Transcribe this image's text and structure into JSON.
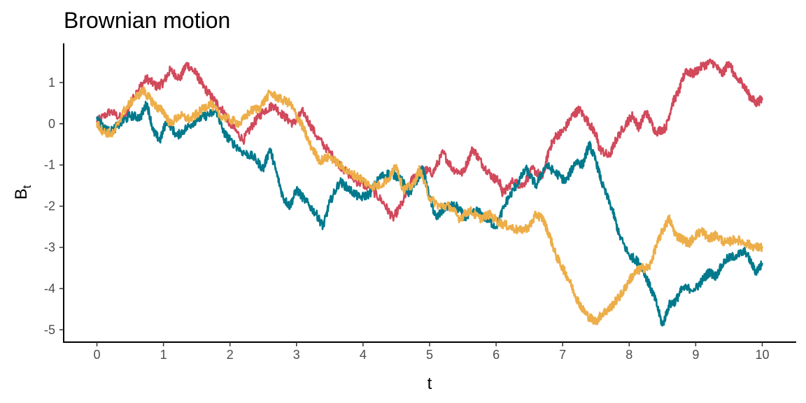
{
  "chart_data": {
    "type": "line",
    "title": "Brownian motion",
    "xlabel": "t",
    "ylabel": {
      "main": "B",
      "subscript": "t"
    },
    "xlim": [
      -0.5,
      10.5
    ],
    "ylim": [
      -5.3,
      1.95
    ],
    "x_ticks": [
      0,
      1,
      2,
      3,
      4,
      5,
      6,
      7,
      8,
      9,
      10
    ],
    "y_ticks": [
      -5,
      -4,
      -3,
      -2,
      -1,
      0,
      1
    ],
    "x_tick_labels": [
      "0",
      "1",
      "2",
      "3",
      "4",
      "5",
      "6",
      "7",
      "8",
      "9",
      "10"
    ],
    "y_tick_labels": [
      "-5",
      "-4",
      "-3",
      "-2",
      "-1",
      "0",
      "1"
    ],
    "grid": false,
    "legend": "none",
    "series": [
      {
        "color": "#d1495b",
        "points": [
          [
            0,
            0.05
          ],
          [
            0.2,
            0.3
          ],
          [
            0.4,
            0.1
          ],
          [
            0.6,
            0.8
          ],
          [
            0.75,
            1.1
          ],
          [
            0.9,
            0.9
          ],
          [
            1.0,
            1.0
          ],
          [
            1.1,
            1.3
          ],
          [
            1.25,
            1.1
          ],
          [
            1.35,
            1.45
          ],
          [
            1.5,
            1.2
          ],
          [
            1.6,
            0.9
          ],
          [
            1.75,
            0.6
          ],
          [
            1.9,
            0.3
          ],
          [
            2.0,
            0.0
          ],
          [
            2.2,
            -0.4
          ],
          [
            2.35,
            0.0
          ],
          [
            2.5,
            0.3
          ],
          [
            2.65,
            0.45
          ],
          [
            2.8,
            0.2
          ],
          [
            2.95,
            0.0
          ],
          [
            3.1,
            0.3
          ],
          [
            3.3,
            -0.3
          ],
          [
            3.5,
            -0.7
          ],
          [
            3.7,
            -1.1
          ],
          [
            3.9,
            -1.4
          ],
          [
            4.1,
            -1.55
          ],
          [
            4.3,
            -1.9
          ],
          [
            4.45,
            -2.3
          ],
          [
            4.6,
            -1.9
          ],
          [
            4.75,
            -1.3
          ],
          [
            4.9,
            -1.1
          ],
          [
            5.05,
            -1.2
          ],
          [
            5.2,
            -0.7
          ],
          [
            5.35,
            -1.1
          ],
          [
            5.5,
            -1.2
          ],
          [
            5.65,
            -0.6
          ],
          [
            5.8,
            -1.0
          ],
          [
            5.95,
            -1.3
          ],
          [
            6.05,
            -1.4
          ],
          [
            6.1,
            -1.7
          ],
          [
            6.25,
            -1.4
          ],
          [
            6.4,
            -1.5
          ],
          [
            6.55,
            -1.1
          ],
          [
            6.7,
            -1.3
          ],
          [
            6.8,
            -0.6
          ],
          [
            6.9,
            -0.3
          ],
          [
            7.0,
            -0.2
          ],
          [
            7.15,
            0.2
          ],
          [
            7.25,
            0.35
          ],
          [
            7.4,
            0.0
          ],
          [
            7.5,
            -0.25
          ],
          [
            7.55,
            -0.6
          ],
          [
            7.7,
            -0.8
          ],
          [
            7.8,
            -0.4
          ],
          [
            7.95,
            0.0
          ],
          [
            8.05,
            0.2
          ],
          [
            8.15,
            -0.1
          ],
          [
            8.25,
            0.3
          ],
          [
            8.4,
            -0.2
          ],
          [
            8.55,
            -0.1
          ],
          [
            8.65,
            0.5
          ],
          [
            8.75,
            0.8
          ],
          [
            8.85,
            1.3
          ],
          [
            8.95,
            1.2
          ],
          [
            9.1,
            1.4
          ],
          [
            9.25,
            1.5
          ],
          [
            9.4,
            1.2
          ],
          [
            9.5,
            1.5
          ],
          [
            9.6,
            1.1
          ],
          [
            9.7,
            1.0
          ],
          [
            9.8,
            0.7
          ],
          [
            9.9,
            0.5
          ],
          [
            10.0,
            0.6
          ]
        ]
      },
      {
        "color": "#00798c",
        "points": [
          [
            0,
            0.15
          ],
          [
            0.1,
            -0.1
          ],
          [
            0.2,
            -0.2
          ],
          [
            0.35,
            0.0
          ],
          [
            0.5,
            0.2
          ],
          [
            0.65,
            0.15
          ],
          [
            0.75,
            0.5
          ],
          [
            0.85,
            -0.2
          ],
          [
            0.95,
            -0.4
          ],
          [
            1.05,
            0.1
          ],
          [
            1.2,
            -0.3
          ],
          [
            1.35,
            -0.1
          ],
          [
            1.5,
            0.1
          ],
          [
            1.65,
            0.2
          ],
          [
            1.8,
            0.3
          ],
          [
            1.9,
            -0.2
          ],
          [
            2.0,
            -0.4
          ],
          [
            2.2,
            -0.7
          ],
          [
            2.35,
            -0.8
          ],
          [
            2.5,
            -1.1
          ],
          [
            2.6,
            -0.6
          ],
          [
            2.7,
            -1.2
          ],
          [
            2.8,
            -1.8
          ],
          [
            2.9,
            -2.0
          ],
          [
            3.0,
            -1.6
          ],
          [
            3.15,
            -1.9
          ],
          [
            3.3,
            -2.2
          ],
          [
            3.4,
            -2.5
          ],
          [
            3.5,
            -1.9
          ],
          [
            3.65,
            -1.4
          ],
          [
            3.8,
            -1.6
          ],
          [
            3.95,
            -1.8
          ],
          [
            4.1,
            -1.7
          ],
          [
            4.25,
            -1.3
          ],
          [
            4.4,
            -1.2
          ],
          [
            4.55,
            -1.3
          ],
          [
            4.7,
            -1.7
          ],
          [
            4.8,
            -1.4
          ],
          [
            4.9,
            -1.1
          ],
          [
            5.0,
            -1.8
          ],
          [
            5.1,
            -2.3
          ],
          [
            5.25,
            -2.0
          ],
          [
            5.4,
            -2.0
          ],
          [
            5.55,
            -2.3
          ],
          [
            5.7,
            -2.1
          ],
          [
            5.85,
            -2.3
          ],
          [
            6.0,
            -2.5
          ],
          [
            6.15,
            -1.9
          ],
          [
            6.3,
            -1.5
          ],
          [
            6.45,
            -1.1
          ],
          [
            6.6,
            -1.5
          ],
          [
            6.75,
            -1.0
          ],
          [
            6.9,
            -1.2
          ],
          [
            7.05,
            -1.4
          ],
          [
            7.2,
            -0.9
          ],
          [
            7.3,
            -1.0
          ],
          [
            7.4,
            -0.5
          ],
          [
            7.5,
            -0.9
          ],
          [
            7.6,
            -1.5
          ],
          [
            7.75,
            -2.1
          ],
          [
            7.85,
            -2.7
          ],
          [
            8.0,
            -3.2
          ],
          [
            8.1,
            -3.3
          ],
          [
            8.2,
            -3.5
          ],
          [
            8.3,
            -3.9
          ],
          [
            8.4,
            -4.3
          ],
          [
            8.5,
            -4.9
          ],
          [
            8.6,
            -4.4
          ],
          [
            8.7,
            -4.3
          ],
          [
            8.8,
            -4.0
          ],
          [
            9.0,
            -4.0
          ],
          [
            9.1,
            -3.8
          ],
          [
            9.2,
            -3.6
          ],
          [
            9.3,
            -3.7
          ],
          [
            9.45,
            -3.3
          ],
          [
            9.6,
            -3.2
          ],
          [
            9.75,
            -3.1
          ],
          [
            9.9,
            -3.6
          ],
          [
            10.0,
            -3.4
          ]
        ]
      },
      {
        "color": "#edae49",
        "points": [
          [
            0,
            0.0
          ],
          [
            0.1,
            -0.2
          ],
          [
            0.25,
            -0.25
          ],
          [
            0.4,
            0.3
          ],
          [
            0.55,
            0.6
          ],
          [
            0.7,
            0.8
          ],
          [
            0.8,
            0.6
          ],
          [
            0.9,
            0.4
          ],
          [
            1.0,
            0.3
          ],
          [
            1.1,
            0.0
          ],
          [
            1.25,
            0.2
          ],
          [
            1.4,
            0.1
          ],
          [
            1.55,
            0.3
          ],
          [
            1.7,
            0.5
          ],
          [
            1.85,
            0.2
          ],
          [
            2.0,
            0.1
          ],
          [
            2.15,
            0.0
          ],
          [
            2.3,
            0.3
          ],
          [
            2.45,
            0.4
          ],
          [
            2.6,
            0.75
          ],
          [
            2.75,
            0.6
          ],
          [
            2.9,
            0.5
          ],
          [
            3.0,
            0.2
          ],
          [
            3.1,
            -0.1
          ],
          [
            3.2,
            -0.5
          ],
          [
            3.35,
            -0.9
          ],
          [
            3.5,
            -0.8
          ],
          [
            3.65,
            -1.0
          ],
          [
            3.8,
            -1.2
          ],
          [
            3.95,
            -1.3
          ],
          [
            4.1,
            -1.5
          ],
          [
            4.25,
            -1.5
          ],
          [
            4.4,
            -1.3
          ],
          [
            4.5,
            -1.0
          ],
          [
            4.6,
            -1.6
          ],
          [
            4.75,
            -1.5
          ],
          [
            4.85,
            -1.1
          ],
          [
            5.0,
            -1.8
          ],
          [
            5.15,
            -2.0
          ],
          [
            5.3,
            -2.0
          ],
          [
            5.45,
            -2.3
          ],
          [
            5.6,
            -2.1
          ],
          [
            5.75,
            -2.3
          ],
          [
            5.9,
            -2.2
          ],
          [
            6.05,
            -2.4
          ],
          [
            6.2,
            -2.5
          ],
          [
            6.35,
            -2.6
          ],
          [
            6.5,
            -2.5
          ],
          [
            6.6,
            -2.2
          ],
          [
            6.7,
            -2.3
          ],
          [
            6.8,
            -2.7
          ],
          [
            6.9,
            -3.2
          ],
          [
            7.0,
            -3.5
          ],
          [
            7.1,
            -3.8
          ],
          [
            7.2,
            -4.2
          ],
          [
            7.3,
            -4.5
          ],
          [
            7.4,
            -4.7
          ],
          [
            7.5,
            -4.8
          ],
          [
            7.6,
            -4.6
          ],
          [
            7.7,
            -4.5
          ],
          [
            7.8,
            -4.3
          ],
          [
            7.9,
            -4.1
          ],
          [
            8.0,
            -3.8
          ],
          [
            8.1,
            -3.6
          ],
          [
            8.2,
            -3.5
          ],
          [
            8.3,
            -3.5
          ],
          [
            8.4,
            -3.0
          ],
          [
            8.5,
            -2.6
          ],
          [
            8.6,
            -2.3
          ],
          [
            8.7,
            -2.7
          ],
          [
            8.8,
            -2.8
          ],
          [
            8.9,
            -2.9
          ],
          [
            9.0,
            -2.7
          ],
          [
            9.1,
            -2.6
          ],
          [
            9.2,
            -2.8
          ],
          [
            9.3,
            -2.7
          ],
          [
            9.45,
            -2.9
          ],
          [
            9.6,
            -2.8
          ],
          [
            9.75,
            -2.9
          ],
          [
            9.9,
            -3.0
          ],
          [
            10.0,
            -3.0
          ]
        ]
      }
    ]
  }
}
